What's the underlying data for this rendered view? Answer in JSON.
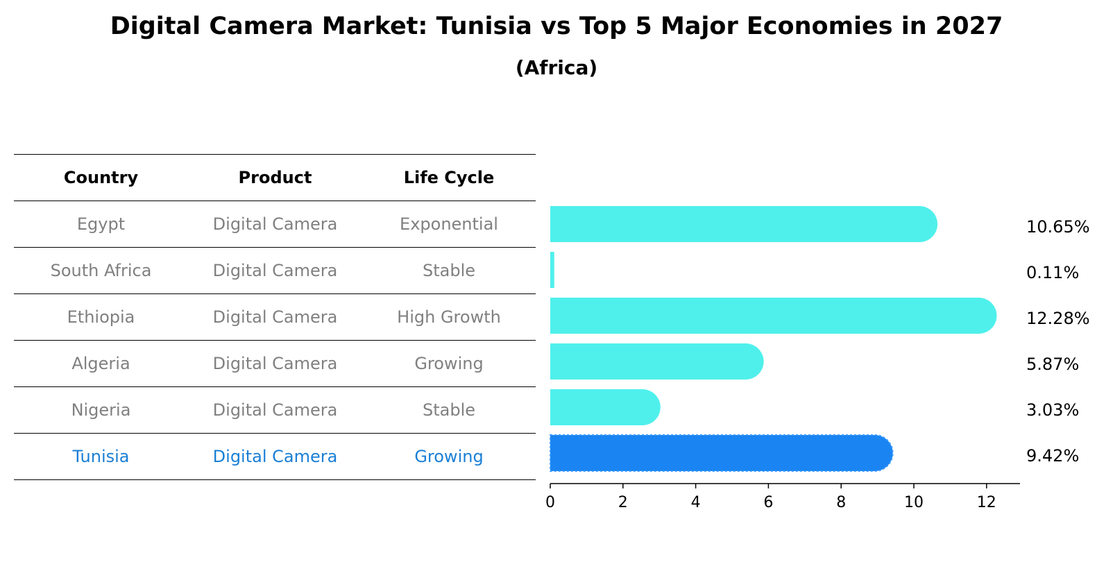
{
  "title": "Digital Camera Market: Tunisia vs Top 5 Major Economies in 2027",
  "subtitle": "(Africa)",
  "table": {
    "headers": [
      "Country",
      "Product",
      "Life Cycle"
    ],
    "rows": [
      {
        "country": "Egypt",
        "product": "Digital Camera",
        "life_cycle": "Exponential"
      },
      {
        "country": "South Africa",
        "product": "Digital Camera",
        "life_cycle": "Stable"
      },
      {
        "country": "Ethiopia",
        "product": "Digital Camera",
        "life_cycle": "High Growth"
      },
      {
        "country": "Algeria",
        "product": "Digital Camera",
        "life_cycle": "Growing"
      },
      {
        "country": "Nigeria",
        "product": "Digital Camera",
        "life_cycle": "Stable"
      },
      {
        "country": "Tunisia",
        "product": "Digital Camera",
        "life_cycle": "Growing"
      }
    ]
  },
  "colors": {
    "bar": "#4ff0ec",
    "highlight_bar": "#1a84f3",
    "highlight_text": "#1a7fd6",
    "muted_text": "#808080"
  },
  "chart_data": {
    "type": "bar",
    "orientation": "horizontal",
    "categories": [
      "Egypt",
      "South Africa",
      "Ethiopia",
      "Algeria",
      "Nigeria",
      "Tunisia"
    ],
    "values": [
      10.65,
      0.11,
      12.28,
      5.87,
      3.03,
      9.42
    ],
    "value_labels": [
      "10.65%",
      "0.11%",
      "12.28%",
      "5.87%",
      "3.03%",
      "9.42%"
    ],
    "highlight": "Tunisia",
    "xlim": [
      0,
      12.9
    ],
    "xticks": [
      0,
      2,
      4,
      6,
      8,
      10,
      12
    ],
    "grid": false
  }
}
